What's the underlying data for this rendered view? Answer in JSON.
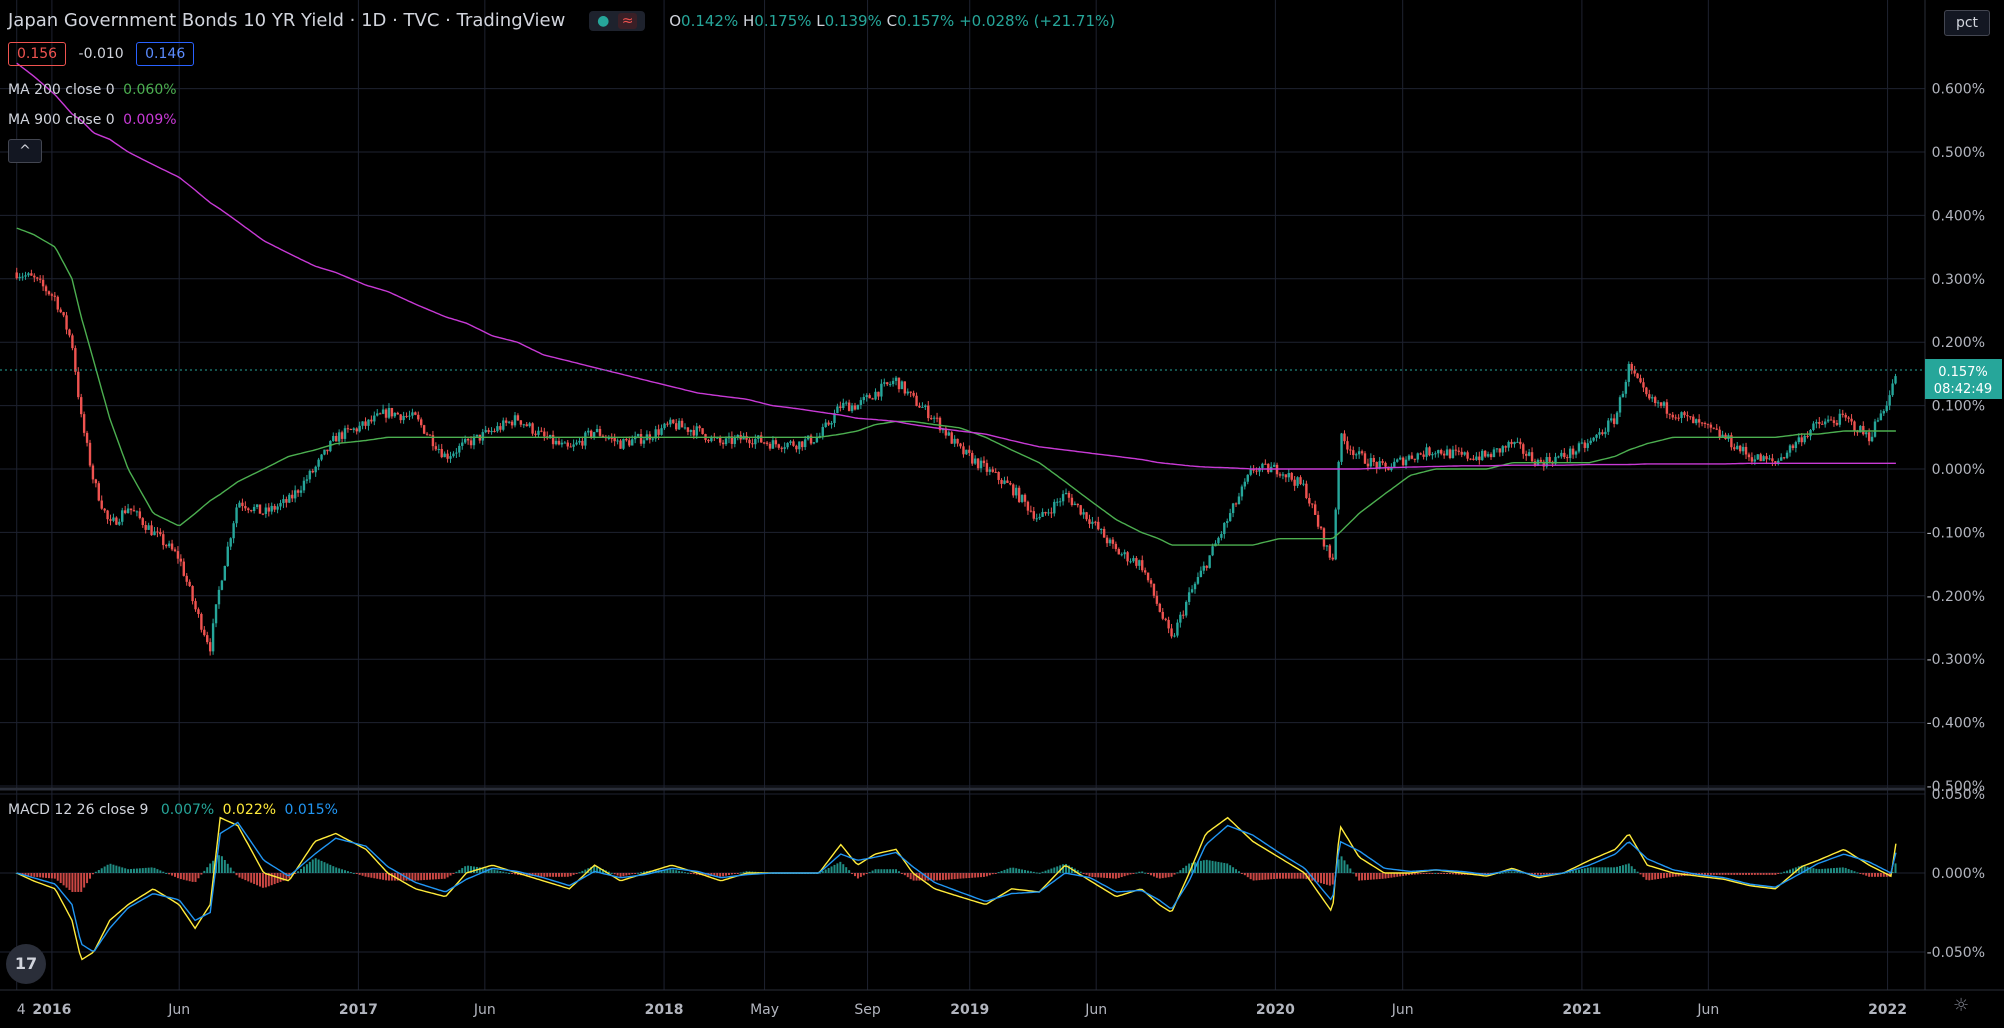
{
  "header": {
    "symbol_title": "Japan Government Bonds 10 YR Yield · 1D · TVC · TradingView",
    "status_dot": "●",
    "status_wave": "≈",
    "ohlc": {
      "o_label": "O",
      "o": "0.142%",
      "h_label": "H",
      "h": "0.175%",
      "l_label": "L",
      "l": "0.139%",
      "c_label": "C",
      "c": "0.157%",
      "change": "+0.028% (+21.71%)"
    },
    "bid": "0.156",
    "spread": "-0.010",
    "ask": "0.146",
    "collapse": "^",
    "scale_mode": "pct"
  },
  "indicators": {
    "ma200": {
      "label": "MA 200 close 0",
      "value": "0.060%",
      "color": "#4caf50"
    },
    "ma900": {
      "label": "MA 900 close 0",
      "value": "0.009%",
      "color": "#c83ad6"
    },
    "macd": {
      "label": "MACD 12 26 close 9",
      "hist": "0.007%",
      "macd": "0.022%",
      "signal": "0.015%",
      "hist_color": "#26a69a",
      "macd_color": "#ffeb3b",
      "signal_color": "#2196f3"
    }
  },
  "price_label": {
    "value": "0.157%",
    "countdown": "08:42:49"
  },
  "colors": {
    "up": "#26a69a",
    "down": "#ef5350",
    "grid": "#1e2230",
    "axis_text": "#b2b5be",
    "background": "#000000"
  },
  "chart_data": [
    {
      "type": "candlestick",
      "title": "Japan Government Bonds 10 YR Yield · 1D · TVC · TradingView",
      "x_tick_labels": [
        "4",
        "2016",
        "Jun",
        "2017",
        "Jun",
        "2018",
        "May",
        "Sep",
        "2019",
        "Jun",
        "2020",
        "Jun",
        "2021",
        "Jun",
        "2022"
      ],
      "y_tick_labels": [
        "0.600%",
        "0.500%",
        "0.400%",
        "0.300%",
        "0.200%",
        "0.100%",
        "0.000%",
        "-0.100%",
        "-0.200%",
        "-0.300%",
        "-0.400%",
        "-0.500%"
      ],
      "ylim": [
        -0.5,
        0.7
      ],
      "grid": true,
      "dates": [
        "2015-11-20",
        "2015-12-10",
        "2016-01-05",
        "2016-01-25",
        "2016-02-05",
        "2016-02-20",
        "2016-03-10",
        "2016-04-01",
        "2016-05-01",
        "2016-06-01",
        "2016-06-20",
        "2016-07-08",
        "2016-07-20",
        "2016-08-10",
        "2016-09-10",
        "2016-10-10",
        "2016-11-10",
        "2016-12-05",
        "2017-01-10",
        "2017-02-05",
        "2017-03-10",
        "2017-04-15",
        "2017-05-10",
        "2017-06-10",
        "2017-07-10",
        "2017-08-10",
        "2017-09-10",
        "2017-10-10",
        "2017-11-10",
        "2017-12-10",
        "2018-01-10",
        "2018-02-10",
        "2018-03-10",
        "2018-04-10",
        "2018-05-10",
        "2018-06-10",
        "2018-07-05",
        "2018-07-31",
        "2018-08-20",
        "2018-09-10",
        "2018-10-05",
        "2018-10-25",
        "2018-11-20",
        "2018-12-20",
        "2019-01-20",
        "2019-02-20",
        "2019-03-25",
        "2019-04-25",
        "2019-05-25",
        "2019-06-25",
        "2019-07-25",
        "2019-08-15",
        "2019-08-30",
        "2019-09-20",
        "2019-10-10",
        "2019-11-05",
        "2019-12-05",
        "2020-01-05",
        "2020-02-05",
        "2020-03-09",
        "2020-03-18",
        "2020-04-10",
        "2020-05-10",
        "2020-06-10",
        "2020-07-10",
        "2020-08-10",
        "2020-09-10",
        "2020-10-10",
        "2020-11-10",
        "2020-12-10",
        "2021-01-10",
        "2021-02-10",
        "2021-02-26",
        "2021-03-20",
        "2021-04-20",
        "2021-05-20",
        "2021-06-20",
        "2021-07-20",
        "2021-08-20",
        "2021-09-20",
        "2021-10-10",
        "2021-11-10",
        "2021-12-10",
        "2022-01-05",
        "2022-01-12"
      ],
      "close": [
        0.31,
        0.3,
        0.27,
        0.2,
        0.08,
        -0.02,
        -0.09,
        -0.06,
        -0.1,
        -0.14,
        -0.22,
        -0.28,
        -0.18,
        -0.05,
        -0.07,
        -0.05,
        0.0,
        0.05,
        0.07,
        0.09,
        0.08,
        0.02,
        0.04,
        0.06,
        0.08,
        0.05,
        0.03,
        0.06,
        0.04,
        0.05,
        0.07,
        0.06,
        0.04,
        0.05,
        0.04,
        0.04,
        0.05,
        0.1,
        0.1,
        0.12,
        0.14,
        0.11,
        0.08,
        0.03,
        0.0,
        -0.03,
        -0.08,
        -0.04,
        -0.08,
        -0.13,
        -0.15,
        -0.22,
        -0.27,
        -0.2,
        -0.15,
        -0.08,
        0.0,
        0.0,
        -0.03,
        -0.15,
        0.05,
        0.02,
        0.0,
        0.02,
        0.03,
        0.02,
        0.02,
        0.04,
        0.01,
        0.02,
        0.04,
        0.08,
        0.16,
        0.11,
        0.09,
        0.07,
        0.05,
        0.02,
        0.01,
        0.05,
        0.07,
        0.08,
        0.05,
        0.12,
        0.157
      ],
      "series": [
        {
          "name": "MA 200 close 0",
          "values": [
            0.38,
            0.37,
            0.35,
            0.3,
            0.24,
            0.17,
            0.08,
            0.0,
            -0.07,
            -0.09,
            -0.07,
            -0.05,
            -0.04,
            -0.02,
            0.0,
            0.02,
            0.03,
            0.04,
            0.045,
            0.05,
            0.05,
            0.05,
            0.05,
            0.05,
            0.05,
            0.05,
            0.05,
            0.05,
            0.05,
            0.05,
            0.05,
            0.05,
            0.05,
            0.05,
            0.05,
            0.05,
            0.05,
            0.055,
            0.06,
            0.07,
            0.075,
            0.075,
            0.07,
            0.065,
            0.05,
            0.03,
            0.01,
            -0.02,
            -0.05,
            -0.08,
            -0.1,
            -0.11,
            -0.12,
            -0.12,
            -0.12,
            -0.12,
            -0.12,
            -0.11,
            -0.11,
            -0.11,
            -0.1,
            -0.07,
            -0.04,
            -0.01,
            0.0,
            0.0,
            0.0,
            0.01,
            0.01,
            0.01,
            0.01,
            0.02,
            0.03,
            0.04,
            0.05,
            0.05,
            0.05,
            0.05,
            0.05,
            0.055,
            0.055,
            0.06,
            0.06,
            0.06,
            0.06
          ]
        },
        {
          "name": "MA 900 close 0",
          "values": [
            0.64,
            0.62,
            0.59,
            0.56,
            0.55,
            0.53,
            0.52,
            0.5,
            0.48,
            0.46,
            0.44,
            0.42,
            0.41,
            0.39,
            0.36,
            0.34,
            0.32,
            0.31,
            0.29,
            0.28,
            0.26,
            0.24,
            0.23,
            0.21,
            0.2,
            0.18,
            0.17,
            0.16,
            0.15,
            0.14,
            0.13,
            0.12,
            0.115,
            0.11,
            0.1,
            0.095,
            0.09,
            0.085,
            0.08,
            0.078,
            0.075,
            0.07,
            0.065,
            0.06,
            0.055,
            0.045,
            0.035,
            0.03,
            0.025,
            0.02,
            0.015,
            0.01,
            0.008,
            0.005,
            0.003,
            0.002,
            0.0,
            0.0,
            0.0,
            0.0,
            0.0,
            0.0,
            0.002,
            0.003,
            0.004,
            0.005,
            0.005,
            0.006,
            0.006,
            0.006,
            0.007,
            0.007,
            0.007,
            0.008,
            0.008,
            0.008,
            0.008,
            0.009,
            0.009,
            0.009,
            0.009,
            0.009,
            0.009,
            0.009,
            0.009
          ]
        }
      ]
    },
    {
      "type": "line",
      "title": "MACD 12 26 close 9",
      "y_tick_labels": [
        "0.050%",
        "0.000%",
        "-0.050%"
      ],
      "ylim": [
        -0.075,
        0.05
      ],
      "grid": true,
      "series": [
        {
          "name": "MACD",
          "values": [
            0.0,
            -0.005,
            -0.01,
            -0.03,
            -0.055,
            -0.05,
            -0.03,
            -0.02,
            -0.01,
            -0.02,
            -0.035,
            -0.02,
            0.035,
            0.03,
            0.0,
            -0.005,
            0.02,
            0.025,
            0.015,
            0.0,
            -0.01,
            -0.015,
            0.0,
            0.005,
            0.0,
            -0.005,
            -0.01,
            0.005,
            -0.005,
            0.0,
            0.005,
            0.0,
            -0.005,
            0.0,
            0.0,
            0.0,
            0.0,
            0.018,
            0.005,
            0.012,
            0.015,
            0.0,
            -0.01,
            -0.015,
            -0.02,
            -0.01,
            -0.012,
            0.005,
            -0.005,
            -0.015,
            -0.01,
            -0.02,
            -0.025,
            0.0,
            0.025,
            0.035,
            0.02,
            0.01,
            0.0,
            -0.025,
            0.03,
            0.01,
            0.0,
            0.0,
            0.002,
            0.0,
            -0.002,
            0.003,
            -0.003,
            0.0,
            0.008,
            0.015,
            0.025,
            0.005,
            0.0,
            -0.002,
            -0.004,
            -0.008,
            -0.01,
            0.004,
            0.008,
            0.015,
            0.005,
            -0.002,
            0.022
          ]
        },
        {
          "name": "Signal",
          "values": [
            0.0,
            -0.003,
            -0.007,
            -0.02,
            -0.045,
            -0.05,
            -0.035,
            -0.022,
            -0.013,
            -0.017,
            -0.03,
            -0.025,
            0.025,
            0.032,
            0.008,
            -0.002,
            0.012,
            0.022,
            0.017,
            0.004,
            -0.006,
            -0.012,
            -0.004,
            0.003,
            0.001,
            -0.003,
            -0.008,
            0.001,
            -0.003,
            -0.001,
            0.003,
            0.001,
            -0.003,
            -0.001,
            0.0,
            0.0,
            0.0,
            0.012,
            0.008,
            0.01,
            0.013,
            0.004,
            -0.006,
            -0.012,
            -0.018,
            -0.013,
            -0.012,
            0.0,
            -0.003,
            -0.012,
            -0.011,
            -0.017,
            -0.023,
            -0.005,
            0.018,
            0.03,
            0.024,
            0.013,
            0.003,
            -0.018,
            0.02,
            0.014,
            0.003,
            0.001,
            0.002,
            0.001,
            -0.001,
            0.002,
            -0.002,
            0.0,
            0.005,
            0.012,
            0.02,
            0.009,
            0.002,
            -0.001,
            -0.003,
            -0.007,
            -0.009,
            0.0,
            0.006,
            0.012,
            0.007,
            0.0,
            0.015
          ]
        }
      ]
    }
  ]
}
